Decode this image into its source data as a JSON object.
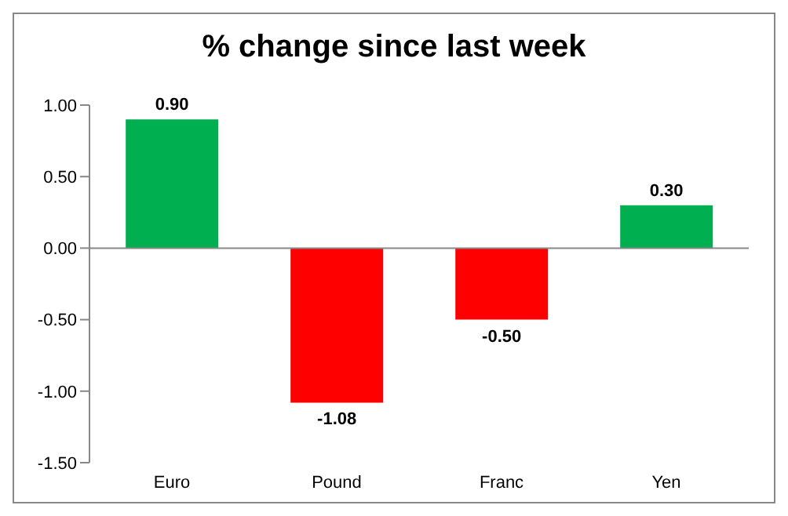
{
  "chart_data": {
    "type": "bar",
    "title": "% change since last week",
    "categories": [
      "Euro",
      "Pound",
      "Franc",
      "Yen"
    ],
    "values": [
      0.9,
      -1.08,
      -0.5,
      0.3
    ],
    "colors": [
      "#00b050",
      "#ff0000",
      "#ff0000",
      "#00b050"
    ],
    "value_labels": [
      "0.90",
      "-1.08",
      "-0.50",
      "0.30"
    ],
    "ylim": [
      -1.5,
      1.0
    ],
    "yticks": [
      {
        "value": -1.5,
        "label": "-1.50"
      },
      {
        "value": -1,
        "label": "-1.00"
      },
      {
        "value": -0.5,
        "label": "-0.50"
      },
      {
        "value": 0,
        "label": "0.00"
      },
      {
        "value": 0.5,
        "label": "0.50"
      },
      {
        "value": 1,
        "label": "1.00"
      }
    ],
    "ylabel": null
  }
}
